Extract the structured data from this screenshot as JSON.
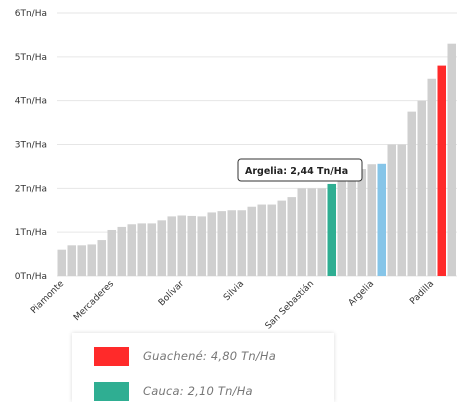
{
  "chart_data": {
    "type": "bar",
    "ylim": [
      0,
      6
    ],
    "yticks": [
      "0Tn/Ha",
      "1Tn/Ha",
      "2Tn/Ha",
      "3Tn/Ha",
      "4Tn/Ha",
      "5Tn/Ha",
      "6Tn/Ha"
    ],
    "ytick_values": [
      0,
      1,
      2,
      3,
      4,
      5,
      6
    ],
    "grid": true,
    "xtick_labels": [
      {
        "label": "Piamonte",
        "index": 0
      },
      {
        "label": "Mercaderes",
        "index": 5
      },
      {
        "label": "Bolívar",
        "index": 12
      },
      {
        "label": "Silvia",
        "index": 18
      },
      {
        "label": "San Sebastián",
        "index": 25
      },
      {
        "label": "Argelia",
        "index": 31
      },
      {
        "label": "Padilla",
        "index": 37
      }
    ],
    "values": [
      0.6,
      0.7,
      0.7,
      0.72,
      0.82,
      1.05,
      1.12,
      1.18,
      1.2,
      1.2,
      1.27,
      1.36,
      1.38,
      1.37,
      1.36,
      1.45,
      1.48,
      1.5,
      1.5,
      1.58,
      1.63,
      1.63,
      1.72,
      1.8,
      2.0,
      2.0,
      2.0,
      2.1,
      2.2,
      2.32,
      2.44,
      2.55,
      2.56,
      3.0,
      3.0,
      3.75,
      4.0,
      4.5,
      4.8,
      5.3
    ],
    "highlights": [
      {
        "index": 27,
        "color": "#2fae92"
      },
      {
        "index": 32,
        "color": "#86c5e8"
      },
      {
        "index": 38,
        "color": "#ff2a2a"
      }
    ],
    "default_color": "#cfcfcf",
    "tooltip": {
      "text": "Argelia: 2,44 Tn/Ha",
      "index": 30
    }
  },
  "legend": {
    "items": [
      {
        "label": "Guachené:  4,80 Tn/Ha",
        "color": "#ff2a2a"
      },
      {
        "label": "Cauca:  2,10 Tn/Ha",
        "color": "#2fae92"
      }
    ]
  }
}
